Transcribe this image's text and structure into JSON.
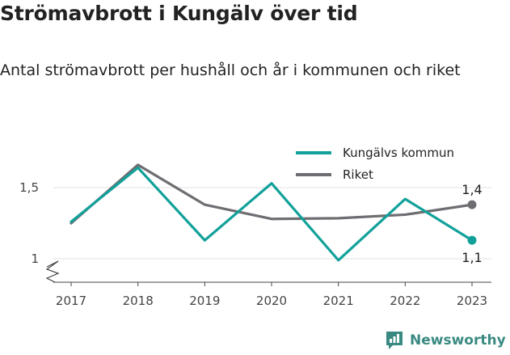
{
  "title": "Strömavbrott i Kungälv över tid",
  "subtitle": "Antal strömavbrott per hushåll och år i kommunen och riket",
  "brand": "Newsworthy",
  "chart_data": {
    "type": "line",
    "x": [
      "2017",
      "2018",
      "2019",
      "2020",
      "2021",
      "2022",
      "2023"
    ],
    "yticks": [
      1,
      1.5
    ],
    "ytick_labels": [
      "1",
      "1,5"
    ],
    "ylim": [
      0.85,
      1.75
    ],
    "axis_break": true,
    "grid": true,
    "legend_position": "top-right",
    "series": [
      {
        "name": "Kungälvs kommun",
        "color": "#12a19a",
        "values": [
          1.26,
          1.64,
          1.13,
          1.53,
          0.99,
          1.42,
          1.13
        ],
        "end_label": "1,1"
      },
      {
        "name": "Riket",
        "color": "#6e6d72",
        "values": [
          1.25,
          1.66,
          1.38,
          1.28,
          1.285,
          1.31,
          1.38
        ],
        "end_label": "1,4"
      }
    ]
  }
}
